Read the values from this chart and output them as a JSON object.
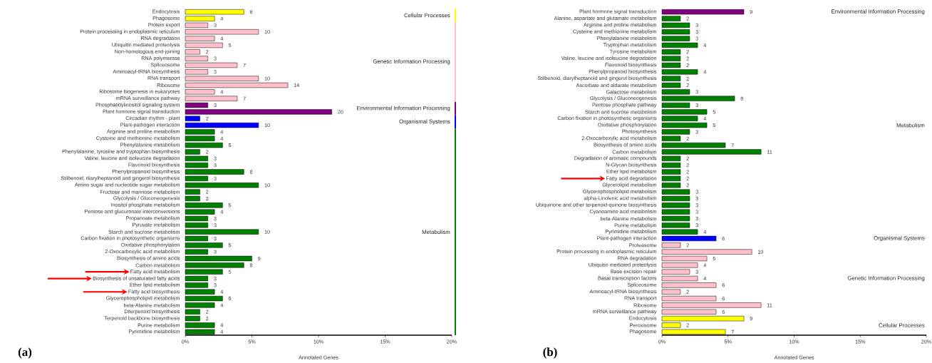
{
  "chart_data": [
    {
      "type": "bar",
      "orientation": "horizontal",
      "title": "(a)",
      "xlabel": "Annotated Genes",
      "xlim": [
        0,
        20
      ],
      "xticks": [
        {
          "value": 0,
          "label": "0%"
        },
        {
          "value": 5,
          "label": "5%"
        },
        {
          "value": 10,
          "label": "10%"
        },
        {
          "value": 15,
          "label": "15%"
        },
        {
          "value": 20,
          "label": "20%"
        }
      ],
      "categories": [
        "Endocytosis",
        "Phagosome",
        "Protein export",
        "Protein processing in endoplasmic reticulum",
        "RNA degradation",
        "Ubiquitin mediated proteolysis",
        "Non-homologous end-joining",
        "RNA polymerase",
        "Spliceosome",
        "Aminoacyl-tRNA biosynthesis",
        "RNA transport",
        "Ribosome",
        "Ribosome biogenesis in eukaryotes",
        "mRNA surveillance pathway",
        "Phosphatidylinositol signaling system",
        "Plant hormone signal transduction",
        "Circadian rhythm - plant",
        "Plant-pathogen interaction",
        "Arginine and proline metabolism",
        "Cysteine and methionine metabolism",
        "Phenylalanine metabolism",
        "Phenylalanine, tyrosine and tryptophan biosynthesis",
        "Valine, leucine and isoleucine degradation",
        "Flavonoid biosynthesis",
        "Phenylpropanoid biosynthesis",
        "Stilbenoid, diarylheptanoid and gingerol biosynthesis",
        "Amino sugar and nucleotide sugar metabolism",
        "Fructose and mannose metabolism",
        "Glycolysis / Gluconeogenesis",
        "Inositol phosphate metabolism",
        "Pentose and glucuronate interconversions",
        "Propanoate metabolism",
        "Pyruvate metabolism",
        "Starch and sucrose metabolism",
        "Carbon fixation in photosynthetic organisms",
        "Oxidative phosphorylation",
        "2-Oxocarboxylic acid metabolism",
        "Biosynthesis of amino acids",
        "Carbon metabolism",
        "Fatty acid metabolism",
        "Biosynthesis of unsaturated fatty acids",
        "Ether lipid metabolism",
        "Fatty acid biosynthesis",
        "Glycerophospholipid metabolism",
        "beta-Alanine metabolism",
        "Diterpenoid biosynthesis",
        "Terpenoid backbone biosynthesis",
        "Purine metabolism",
        "Pyrimidine metabolism"
      ],
      "values": [
        4.4,
        2.2,
        1.7,
        5.5,
        2.2,
        2.8,
        1.1,
        1.7,
        3.9,
        1.7,
        5.5,
        7.7,
        2.2,
        3.9,
        1.7,
        11.0,
        1.1,
        5.5,
        2.2,
        2.2,
        2.8,
        1.1,
        1.7,
        1.7,
        4.4,
        1.7,
        5.5,
        1.1,
        1.1,
        2.8,
        2.2,
        1.7,
        1.7,
        5.5,
        1.7,
        2.8,
        1.7,
        5.0,
        4.4,
        2.8,
        1.7,
        1.7,
        2.2,
        2.8,
        2.2,
        1.1,
        1.1,
        2.2,
        2.2
      ],
      "colors": [
        "#ffff00",
        "#ffff00",
        "#ffc0cb",
        "#ffc0cb",
        "#ffc0cb",
        "#ffc0cb",
        "#ffc0cb",
        "#ffc0cb",
        "#ffc0cb",
        "#ffc0cb",
        "#ffc0cb",
        "#ffc0cb",
        "#ffc0cb",
        "#ffc0cb",
        "#800080",
        "#800080",
        "#0000ff",
        "#0000ff",
        "#008000",
        "#008000",
        "#008000",
        "#008000",
        "#008000",
        "#008000",
        "#008000",
        "#008000",
        "#008000",
        "#008000",
        "#008000",
        "#008000",
        "#008000",
        "#008000",
        "#008000",
        "#008000",
        "#008000",
        "#008000",
        "#008000",
        "#008000",
        "#008000",
        "#008000",
        "#008000",
        "#008000",
        "#008000",
        "#008000",
        "#008000",
        "#008000",
        "#008000",
        "#008000",
        "#008000"
      ],
      "annotations": [
        "Cellular Processes",
        "Genetic Information Processing",
        "Environmental Information Processing",
        "Organismal Systems",
        "Metabolism",
        {
          "y": "Fatty acid metabolism"
        },
        {
          "y": "Biosynthesis of unsaturated fatty acids"
        },
        {
          "y": "Fatty acid biosynthesis"
        },
        {
          "text": "8",
          "x": 4.4,
          "y": "Endocytosis"
        },
        {
          "text": "4",
          "x": 2.2,
          "y": "Phagosome"
        },
        {
          "text": "3",
          "x": 1.7,
          "y": "Protein export"
        },
        {
          "text": "10",
          "x": 5.5,
          "y": "Protein processing in endoplasmic reticulum"
        },
        {
          "text": "4",
          "x": 2.2,
          "y": "RNA degradation"
        },
        {
          "text": "5",
          "x": 2.8,
          "y": "Ubiquitin mediated proteolysis"
        },
        {
          "text": "2",
          "x": 1.1,
          "y": "Non-homologous end-joining"
        },
        {
          "text": "3",
          "x": 1.7,
          "y": "RNA polymerase"
        },
        {
          "text": "7",
          "x": 3.9,
          "y": "Spliceosome"
        },
        {
          "text": "3",
          "x": 1.7,
          "y": "Aminoacyl-tRNA biosynthesis"
        },
        {
          "text": "10",
          "x": 5.5,
          "y": "RNA transport"
        },
        {
          "text": "14",
          "x": 7.7,
          "y": "Ribosome"
        },
        {
          "text": "4",
          "x": 2.2,
          "y": "Ribosome biogenesis in eukaryotes"
        },
        {
          "text": "7",
          "x": 3.9,
          "y": "mRNA surveillance pathway"
        },
        {
          "text": "3",
          "x": 1.7,
          "y": "Phosphatidylinositol signaling system"
        },
        {
          "text": "20",
          "x": 11.0,
          "y": "Plant hormone signal transduction"
        },
        {
          "text": "2",
          "x": 1.1,
          "y": "Circadian rhythm - plant"
        },
        {
          "text": "10",
          "x": 5.5,
          "y": "Plant-pathogen interaction"
        },
        {
          "text": "4",
          "x": 2.2,
          "y": "Arginine and proline metabolism"
        },
        {
          "text": "4",
          "x": 2.2,
          "y": "Cysteine and methionine metabolism"
        },
        {
          "text": "5",
          "x": 2.8,
          "y": "Phenylalanine metabolism"
        },
        {
          "text": "2",
          "x": 1.1,
          "y": "Phenylalanine, tyrosine and tryptophan biosynthesis"
        },
        {
          "text": "3",
          "x": 1.7,
          "y": "Valine, leucine and isoleucine degradation"
        },
        {
          "text": "3",
          "x": 1.7,
          "y": "Flavonoid biosynthesis"
        },
        {
          "text": "8",
          "x": 4.4,
          "y": "Phenylpropanoid biosynthesis"
        },
        {
          "text": "3",
          "x": 1.7,
          "y": "Stilbenoid, diarylheptanoid and gingerol biosynthesis"
        },
        {
          "text": "10",
          "x": 5.5,
          "y": "Amino sugar and nucleotide sugar metabolism"
        },
        {
          "text": "2",
          "x": 1.1,
          "y": "Fructose and mannose metabolism"
        },
        {
          "text": "2",
          "x": 1.1,
          "y": "Glycolysis / Gluconeogenesis"
        },
        {
          "text": "5",
          "x": 2.8,
          "y": "Inositol phosphate metabolism"
        },
        {
          "text": "4",
          "x": 2.2,
          "y": "Pentose and glucuronate interconversions"
        },
        {
          "text": "3",
          "x": 1.7,
          "y": "Propanoate metabolism"
        },
        {
          "text": "3",
          "x": 1.7,
          "y": "Pyruvate metabolism"
        },
        {
          "text": "10",
          "x": 5.5,
          "y": "Starch and sucrose metabolism"
        },
        {
          "text": "3",
          "x": 1.7,
          "y": "Carbon fixation in photosynthetic organisms"
        },
        {
          "text": "5",
          "x": 2.8,
          "y": "Oxidative phosphorylation"
        },
        {
          "text": "3",
          "x": 1.7,
          "y": "2-Oxocarboxylic acid metabolism"
        },
        {
          "text": "9",
          "x": 5.0,
          "y": "Biosynthesis of amino acids"
        },
        {
          "text": "8",
          "x": 4.4,
          "y": "Carbon metabolism"
        },
        {
          "text": "5",
          "x": 2.8,
          "y": "Fatty acid metabolism"
        },
        {
          "text": "3",
          "x": 1.7,
          "y": "Biosynthesis of unsaturated fatty acids"
        },
        {
          "text": "3",
          "x": 1.7,
          "y": "Ether lipid metabolism"
        },
        {
          "text": "4",
          "x": 2.2,
          "y": "Fatty acid biosynthesis"
        },
        {
          "text": "5",
          "x": 2.8,
          "y": "Glycerophospholipid metabolism"
        },
        {
          "text": "4",
          "x": 2.2,
          "y": "beta-Alanine metabolism"
        },
        {
          "text": "2",
          "x": 1.1,
          "y": "Diterpenoid biosynthesis"
        },
        {
          "text": "2",
          "x": 1.1,
          "y": "Terpenoid backbone biosynthesis"
        },
        {
          "text": "4",
          "x": 2.2,
          "y": "Purine metabolism"
        },
        {
          "text": "4",
          "x": 2.2,
          "y": "Pyrimidine metabolism"
        }
      ]
    },
    {
      "type": "bar",
      "orientation": "horizontal",
      "title": "(b)",
      "xlabel": "Annotated Genes",
      "xlim": [
        0,
        20
      ],
      "xticks": [
        {
          "value": 0,
          "label": "0%"
        },
        {
          "value": 5,
          "label": "5%"
        },
        {
          "value": 10,
          "label": "10%"
        },
        {
          "value": 15,
          "label": "15%"
        },
        {
          "value": 20,
          "label": "20%"
        }
      ],
      "categories": [
        "Plant hormone signal transduction",
        "Alanine, aspartate and glutamate metabolism",
        "Arginine and proline metabolism",
        "Cysteine and methionine metabolism",
        "Phenylalanine metabolism",
        "Tryptophan metabolism",
        "Tyrosine metabolism",
        "Valine, leucine and isoleucine degradation",
        "Flavonoid biosynthesis",
        "Phenylpropanoid biosynthesis",
        "Stilbenoid, diarylheptanoid and gingerol biosynthesis",
        "Ascorbate and aldarate metabolism",
        "Galactose metabolism",
        "Glycolysis / Gluconeogenesis",
        "Pentose phosphate pathway",
        "Starch and sucrose metabolism",
        "Carbon fixation in photosynthetic organisms",
        "Oxidative phosphorylation",
        "Photosynthesis",
        "2-Oxocarboxylic acid metabolism",
        "Biosynthesis of amino acids",
        "Carbon metabolism",
        "Degradation of aromatic compounds",
        "N-Glycan biosynthesis",
        "Ether lipid metabolism",
        "Fatty acid degradation",
        "Glycerolipid metabolism",
        "Glycerophospholipid metabolism",
        "alpha-Linolenic acid metabolism",
        "Ubiquinone and other terpenoid-quinone biosynthesis",
        "Cyanoamino acid metabolism",
        "beta-Alanine metabolism",
        "Purine metabolism",
        "Pyrimidine metabolism",
        "Plant-pathogen interaction",
        "Proteasome",
        "Protein processing in endoplasmic reticulum",
        "RNA degradation",
        "Ubiquitin mediated proteolysis",
        "Base excision repair",
        "Basal transcription factors",
        "Spliceosome",
        "Aminoacyl-tRNA biosynthesis",
        "RNA transport",
        "Ribosome",
        "mRNA surveillance pathway",
        "Endocytosis",
        "Peroxisome",
        "Phagosome"
      ],
      "values": [
        6.2,
        1.4,
        2.1,
        2.1,
        2.1,
        2.7,
        1.4,
        1.4,
        1.4,
        2.7,
        1.4,
        1.4,
        2.1,
        5.5,
        2.1,
        3.4,
        2.7,
        3.4,
        2.1,
        1.4,
        4.8,
        7.5,
        1.4,
        1.4,
        1.4,
        1.4,
        1.4,
        2.1,
        2.1,
        2.1,
        2.1,
        2.1,
        2.1,
        2.7,
        4.1,
        1.4,
        6.8,
        3.4,
        2.7,
        2.1,
        2.7,
        4.1,
        1.4,
        4.1,
        7.5,
        4.1,
        6.2,
        1.4,
        4.8
      ],
      "colors": [
        "#800080",
        "#008000",
        "#008000",
        "#008000",
        "#008000",
        "#008000",
        "#008000",
        "#008000",
        "#008000",
        "#008000",
        "#008000",
        "#008000",
        "#008000",
        "#008000",
        "#008000",
        "#008000",
        "#008000",
        "#008000",
        "#008000",
        "#008000",
        "#008000",
        "#008000",
        "#008000",
        "#008000",
        "#008000",
        "#008000",
        "#008000",
        "#008000",
        "#008000",
        "#008000",
        "#008000",
        "#008000",
        "#008000",
        "#008000",
        "#0000ff",
        "#ffc0cb",
        "#ffc0cb",
        "#ffc0cb",
        "#ffc0cb",
        "#ffc0cb",
        "#ffc0cb",
        "#ffc0cb",
        "#ffc0cb",
        "#ffc0cb",
        "#ffc0cb",
        "#ffc0cb",
        "#ffff00",
        "#ffff00",
        "#ffff00"
      ],
      "annotations": [
        "Environmental Information Processing",
        "Metabolism",
        "Organismal Systems",
        "Genetic Information Processing",
        "Cellular Processes",
        {
          "y": "Fatty acid degradation"
        },
        {
          "text": "9",
          "x": 6.2,
          "y": "Plant hormone signal transduction"
        },
        {
          "text": "2",
          "x": 1.4,
          "y": "Alanine, aspartate and glutamate metabolism"
        },
        {
          "text": "3",
          "x": 2.1,
          "y": "Arginine and proline metabolism"
        },
        {
          "text": "3",
          "x": 2.1,
          "y": "Cysteine and methionine metabolism"
        },
        {
          "text": "3",
          "x": 2.1,
          "y": "Phenylalanine metabolism"
        },
        {
          "text": "4",
          "x": 2.7,
          "y": "Tryptophan metabolism"
        },
        {
          "text": "2",
          "x": 1.4,
          "y": "Tyrosine metabolism"
        },
        {
          "text": "2",
          "x": 1.4,
          "y": "Valine, leucine and isoleucine degradation"
        },
        {
          "text": "2",
          "x": 1.4,
          "y": "Flavonoid biosynthesis"
        },
        {
          "text": "4",
          "x": 2.7,
          "y": "Phenylpropanoid biosynthesis"
        },
        {
          "text": "2",
          "x": 1.4,
          "y": "Stilbenoid, diarylheptanoid and gingerol biosynthesis"
        },
        {
          "text": "2",
          "x": 1.4,
          "y": "Ascorbate and aldarate metabolism"
        },
        {
          "text": "3",
          "x": 2.1,
          "y": "Galactose metabolism"
        },
        {
          "text": "8",
          "x": 5.5,
          "y": "Glycolysis / Gluconeogenesis"
        },
        {
          "text": "3",
          "x": 2.1,
          "y": "Pentose phosphate pathway"
        },
        {
          "text": "5",
          "x": 3.4,
          "y": "Starch and sucrose metabolism"
        },
        {
          "text": "4",
          "x": 2.7,
          "y": "Carbon fixation in photosynthetic organisms"
        },
        {
          "text": "5",
          "x": 3.4,
          "y": "Oxidative phosphorylation"
        },
        {
          "text": "3",
          "x": 2.1,
          "y": "Photosynthesis"
        },
        {
          "text": "2",
          "x": 1.4,
          "y": "2-Oxocarboxylic acid metabolism"
        },
        {
          "text": "7",
          "x": 4.8,
          "y": "Biosynthesis of amino acids"
        },
        {
          "text": "11",
          "x": 7.5,
          "y": "Carbon metabolism"
        },
        {
          "text": "2",
          "x": 1.4,
          "y": "Degradation of aromatic compounds"
        },
        {
          "text": "2",
          "x": 1.4,
          "y": "N-Glycan biosynthesis"
        },
        {
          "text": "2",
          "x": 1.4,
          "y": "Ether lipid metabolism"
        },
        {
          "text": "2",
          "x": 1.4,
          "y": "Fatty acid degradation"
        },
        {
          "text": "2",
          "x": 1.4,
          "y": "Glycerolipid metabolism"
        },
        {
          "text": "3",
          "x": 2.1,
          "y": "Glycerophospholipid metabolism"
        },
        {
          "text": "3",
          "x": 2.1,
          "y": "alpha-Linolenic acid metabolism"
        },
        {
          "text": "3",
          "x": 2.1,
          "y": "Ubiquinone and other terpenoid-quinone biosynthesis"
        },
        {
          "text": "3",
          "x": 2.1,
          "y": "Cyanoamino acid metabolism"
        },
        {
          "text": "3",
          "x": 2.1,
          "y": "beta-Alanine metabolism"
        },
        {
          "text": "3",
          "x": 2.1,
          "y": "Purine metabolism"
        },
        {
          "text": "4",
          "x": 2.7,
          "y": "Pyrimidine metabolism"
        },
        {
          "text": "6",
          "x": 4.1,
          "y": "Plant-pathogen interaction"
        },
        {
          "text": "2",
          "x": 1.4,
          "y": "Proteasome"
        },
        {
          "text": "10",
          "x": 6.8,
          "y": "Protein processing in endoplasmic reticulum"
        },
        {
          "text": "5",
          "x": 3.4,
          "y": "RNA degradation"
        },
        {
          "text": "4",
          "x": 2.7,
          "y": "Ubiquitin mediated proteolysis"
        },
        {
          "text": "3",
          "x": 2.1,
          "y": "Base excision repair"
        },
        {
          "text": "4",
          "x": 2.7,
          "y": "Basal transcription factors"
        },
        {
          "text": "6",
          "x": 4.1,
          "y": "Spliceosome"
        },
        {
          "text": "2",
          "x": 1.4,
          "y": "Aminoacyl-tRNA biosynthesis"
        },
        {
          "text": "6",
          "x": 4.1,
          "y": "RNA transport"
        },
        {
          "text": "11",
          "x": 7.5,
          "y": "Ribosome"
        },
        {
          "text": "6",
          "x": 4.1,
          "y": "mRNA surveillance pathway"
        },
        {
          "text": "9",
          "x": 6.2,
          "y": "Endocytosis"
        },
        {
          "text": "2",
          "x": 1.4,
          "y": "Peroxisome"
        },
        {
          "text": "7",
          "x": 4.8,
          "y": "Phagosome"
        }
      ]
    }
  ]
}
